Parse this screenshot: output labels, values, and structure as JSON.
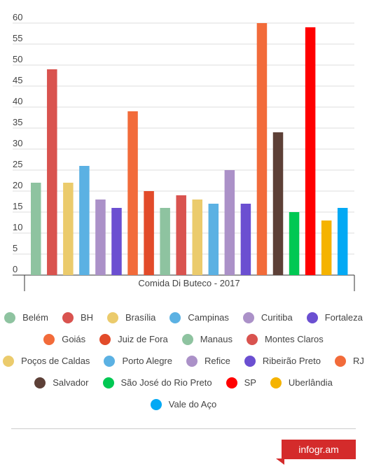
{
  "chart_data": {
    "type": "bar",
    "title": "",
    "xlabel": "",
    "ylabel": "",
    "categories": [
      "Comida Di Buteco - 2017"
    ],
    "ylim": [
      0,
      60
    ],
    "yticks": [
      0,
      5,
      10,
      15,
      20,
      25,
      30,
      35,
      40,
      45,
      50,
      55,
      60
    ],
    "grid": true,
    "legend_position": "bottom",
    "series": [
      {
        "name": "Belém",
        "values": [
          22
        ],
        "color": "#8ec3a0"
      },
      {
        "name": "BH",
        "values": [
          49
        ],
        "color": "#d9534f"
      },
      {
        "name": "Brasília",
        "values": [
          22
        ],
        "color": "#ebcb6c"
      },
      {
        "name": "Campinas",
        "values": [
          26
        ],
        "color": "#5bb1e3"
      },
      {
        "name": "Curitiba",
        "values": [
          18
        ],
        "color": "#ab91c8"
      },
      {
        "name": "Fortaleza",
        "values": [
          16
        ],
        "color": "#6b4fd1"
      },
      {
        "name": "Goiás",
        "values": [
          39
        ],
        "color": "#f26b3a"
      },
      {
        "name": "Juiz de Fora",
        "values": [
          20
        ],
        "color": "#e24b2a"
      },
      {
        "name": "Manaus",
        "values": [
          16
        ],
        "color": "#8ec3a0"
      },
      {
        "name": "Montes Claros",
        "values": [
          19
        ],
        "color": "#d9534f"
      },
      {
        "name": "Poços de Caldas",
        "values": [
          18
        ],
        "color": "#ebcb6c"
      },
      {
        "name": "Porto Alegre",
        "values": [
          17
        ],
        "color": "#5bb1e3"
      },
      {
        "name": "Refice",
        "values": [
          25
        ],
        "color": "#ab91c8"
      },
      {
        "name": "Ribeirão Preto",
        "values": [
          17
        ],
        "color": "#6b4fd1"
      },
      {
        "name": "RJ",
        "values": [
          60
        ],
        "color": "#f26b3a"
      },
      {
        "name": "Salvador",
        "values": [
          34
        ],
        "color": "#5d4037"
      },
      {
        "name": "São José do Rio Preto",
        "values": [
          15
        ],
        "color": "#00c853"
      },
      {
        "name": "SP",
        "values": [
          59
        ],
        "color": "#ff0000"
      },
      {
        "name": "Uberlândia",
        "values": [
          13
        ],
        "color": "#f5b300"
      },
      {
        "name": "Vale do Aço",
        "values": [
          16
        ],
        "color": "#03a9f4"
      }
    ]
  },
  "legend_rows": [
    [
      "Belém",
      "BH",
      "Brasília",
      "Campinas",
      "Curitiba",
      "Fortaleza"
    ],
    [
      "Goiás",
      "Juiz de Fora",
      "Manaus",
      "Montes Claros"
    ],
    [
      "Poços de Caldas",
      "Porto Alegre",
      "Refice",
      "Ribeirão Preto",
      "RJ"
    ],
    [
      "Salvador",
      "São José do Rio Preto",
      "SP",
      "Uberlândia"
    ],
    [
      "Vale do Aço"
    ]
  ],
  "brand": {
    "label": "infogr.am"
  }
}
